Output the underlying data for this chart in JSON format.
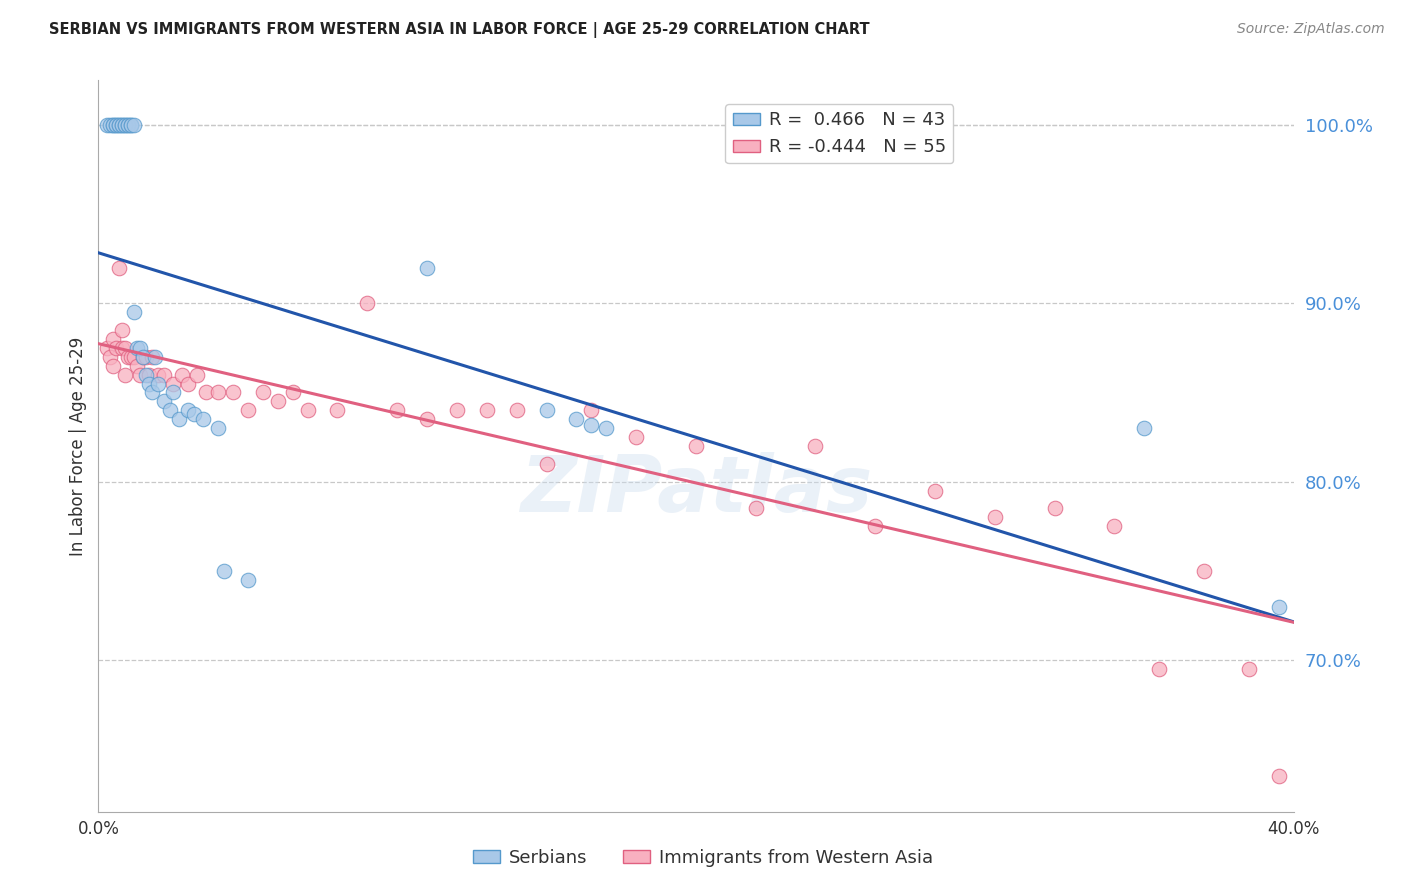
{
  "title": "SERBIAN VS IMMIGRANTS FROM WESTERN ASIA IN LABOR FORCE | AGE 25-29 CORRELATION CHART",
  "source": "Source: ZipAtlas.com",
  "ylabel": "In Labor Force | Age 25-29",
  "x_min": 0.0,
  "x_max": 0.4,
  "y_min": 0.615,
  "y_max": 1.025,
  "y_ticks_right": [
    0.7,
    0.8,
    0.9,
    1.0
  ],
  "y_tick_labels_right": [
    "70.0%",
    "80.0%",
    "90.0%",
    "100.0%"
  ],
  "legend_r1": "R =  0.466   N = 43",
  "legend_r2": "R = -0.444   N = 55",
  "legend_label1": "Serbians",
  "legend_label2": "Immigrants from Western Asia",
  "blue_color": "#a8c8e8",
  "blue_edge": "#5599cc",
  "pink_color": "#f8b0c0",
  "pink_edge": "#e06080",
  "blue_line_color": "#2255aa",
  "pink_line_color": "#e06080",
  "watermark": "ZIPatlas",
  "blue_scatter_x": [
    0.003,
    0.004,
    0.005,
    0.005,
    0.006,
    0.006,
    0.007,
    0.007,
    0.008,
    0.008,
    0.009,
    0.009,
    0.01,
    0.01,
    0.011,
    0.011,
    0.012,
    0.012,
    0.013,
    0.014,
    0.015,
    0.016,
    0.017,
    0.018,
    0.019,
    0.02,
    0.022,
    0.024,
    0.025,
    0.027,
    0.03,
    0.032,
    0.035,
    0.04,
    0.042,
    0.05,
    0.11,
    0.15,
    0.16,
    0.165,
    0.17,
    0.35,
    0.395
  ],
  "blue_scatter_y": [
    1.0,
    1.0,
    1.0,
    1.0,
    1.0,
    1.0,
    1.0,
    1.0,
    1.0,
    1.0,
    1.0,
    1.0,
    1.0,
    1.0,
    1.0,
    1.0,
    1.0,
    0.895,
    0.875,
    0.875,
    0.87,
    0.86,
    0.855,
    0.85,
    0.87,
    0.855,
    0.845,
    0.84,
    0.85,
    0.835,
    0.84,
    0.838,
    0.835,
    0.83,
    0.75,
    0.745,
    0.92,
    0.84,
    0.835,
    0.832,
    0.83,
    0.83,
    0.73
  ],
  "pink_scatter_x": [
    0.003,
    0.004,
    0.005,
    0.005,
    0.006,
    0.007,
    0.008,
    0.008,
    0.009,
    0.009,
    0.01,
    0.011,
    0.012,
    0.013,
    0.014,
    0.015,
    0.016,
    0.017,
    0.018,
    0.02,
    0.022,
    0.025,
    0.028,
    0.03,
    0.033,
    0.036,
    0.04,
    0.045,
    0.05,
    0.055,
    0.06,
    0.065,
    0.07,
    0.08,
    0.09,
    0.1,
    0.11,
    0.12,
    0.13,
    0.14,
    0.15,
    0.165,
    0.18,
    0.2,
    0.22,
    0.24,
    0.26,
    0.28,
    0.3,
    0.32,
    0.34,
    0.355,
    0.37,
    0.385,
    0.395
  ],
  "pink_scatter_y": [
    0.875,
    0.87,
    0.865,
    0.88,
    0.875,
    0.92,
    0.875,
    0.885,
    0.86,
    0.875,
    0.87,
    0.87,
    0.87,
    0.865,
    0.86,
    0.87,
    0.87,
    0.86,
    0.87,
    0.86,
    0.86,
    0.855,
    0.86,
    0.855,
    0.86,
    0.85,
    0.85,
    0.85,
    0.84,
    0.85,
    0.845,
    0.85,
    0.84,
    0.84,
    0.9,
    0.84,
    0.835,
    0.84,
    0.84,
    0.84,
    0.81,
    0.84,
    0.825,
    0.82,
    0.785,
    0.82,
    0.775,
    0.795,
    0.78,
    0.785,
    0.775,
    0.695,
    0.75,
    0.695,
    0.635
  ],
  "background_color": "#ffffff",
  "grid_color": "#c8c8c8"
}
